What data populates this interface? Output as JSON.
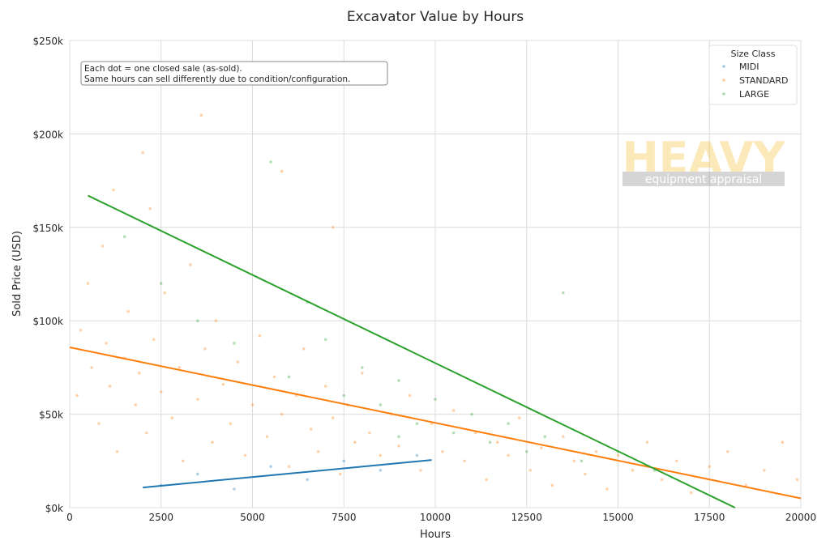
{
  "chart_data": {
    "type": "scatter",
    "title": "Excavator Value by Hours",
    "xlabel": "Hours",
    "ylabel": "Sold Price (USD)",
    "xlim": [
      0,
      20000
    ],
    "ylim": [
      0,
      250000
    ],
    "xticks": [
      0,
      2500,
      5000,
      7500,
      10000,
      12500,
      15000,
      17500,
      20000
    ],
    "xtick_labels": [
      "0",
      "2500",
      "5000",
      "7500",
      "10000",
      "12500",
      "15000",
      "17500",
      "20000"
    ],
    "yticks": [
      0,
      50000,
      100000,
      150000,
      200000,
      250000
    ],
    "ytick_labels": [
      "$0k",
      "$50k",
      "$100k",
      "$150k",
      "$200k",
      "$250k"
    ],
    "grid": true,
    "legend": {
      "title": "Size Class",
      "placement": "top-right"
    },
    "annotation": [
      "Each dot = one closed sale (as-sold).",
      "Same hours can sell differently due to condition/configuration."
    ],
    "watermark": {
      "line1": "HEAVY",
      "line2": "equipment appraisal"
    },
    "series": [
      {
        "name": "MIDI",
        "color": "#1f77b4",
        "points": [
          [
            2500,
            12000
          ],
          [
            3500,
            18000
          ],
          [
            4500,
            10000
          ],
          [
            5500,
            22000
          ],
          [
            6500,
            15000
          ],
          [
            7500,
            25000
          ],
          [
            8500,
            20000
          ],
          [
            9500,
            28000
          ]
        ],
        "trend": [
          [
            2000,
            10800
          ],
          [
            9900,
            25500
          ]
        ]
      },
      {
        "name": "STANDARD",
        "color": "#ff7f0e",
        "points": [
          [
            200,
            60000
          ],
          [
            300,
            95000
          ],
          [
            500,
            120000
          ],
          [
            600,
            75000
          ],
          [
            800,
            45000
          ],
          [
            900,
            140000
          ],
          [
            1000,
            88000
          ],
          [
            1100,
            65000
          ],
          [
            1200,
            170000
          ],
          [
            1300,
            30000
          ],
          [
            1500,
            80000
          ],
          [
            1600,
            105000
          ],
          [
            1800,
            55000
          ],
          [
            1900,
            72000
          ],
          [
            2000,
            190000
          ],
          [
            2100,
            40000
          ],
          [
            2300,
            90000
          ],
          [
            2500,
            62000
          ],
          [
            2600,
            115000
          ],
          [
            2800,
            48000
          ],
          [
            3000,
            75000
          ],
          [
            3100,
            25000
          ],
          [
            3300,
            130000
          ],
          [
            3500,
            58000
          ],
          [
            3700,
            85000
          ],
          [
            3900,
            35000
          ],
          [
            4000,
            100000
          ],
          [
            4200,
            66000
          ],
          [
            4400,
            45000
          ],
          [
            4600,
            78000
          ],
          [
            4800,
            28000
          ],
          [
            5000,
            55000
          ],
          [
            5200,
            92000
          ],
          [
            5400,
            38000
          ],
          [
            5600,
            70000
          ],
          [
            5800,
            50000
          ],
          [
            6000,
            22000
          ],
          [
            6200,
            60000
          ],
          [
            6400,
            85000
          ],
          [
            6600,
            42000
          ],
          [
            6800,
            30000
          ],
          [
            7000,
            65000
          ],
          [
            7200,
            48000
          ],
          [
            7400,
            18000
          ],
          [
            7600,
            55000
          ],
          [
            7800,
            35000
          ],
          [
            8000,
            72000
          ],
          [
            8200,
            40000
          ],
          [
            8500,
            28000
          ],
          [
            8800,
            50000
          ],
          [
            9000,
            33000
          ],
          [
            9300,
            60000
          ],
          [
            9600,
            20000
          ],
          [
            9900,
            45000
          ],
          [
            10200,
            30000
          ],
          [
            10500,
            52000
          ],
          [
            10800,
            25000
          ],
          [
            11100,
            40000
          ],
          [
            11400,
            15000
          ],
          [
            11700,
            35000
          ],
          [
            12000,
            28000
          ],
          [
            12300,
            48000
          ],
          [
            12600,
            20000
          ],
          [
            12900,
            32000
          ],
          [
            13200,
            12000
          ],
          [
            13500,
            38000
          ],
          [
            13800,
            25000
          ],
          [
            14100,
            18000
          ],
          [
            14400,
            30000
          ],
          [
            14700,
            10000
          ],
          [
            15000,
            28000
          ],
          [
            15400,
            20000
          ],
          [
            15800,
            35000
          ],
          [
            16200,
            15000
          ],
          [
            16600,
            25000
          ],
          [
            17000,
            8000
          ],
          [
            17500,
            22000
          ],
          [
            18000,
            30000
          ],
          [
            18500,
            12000
          ],
          [
            19000,
            20000
          ],
          [
            19500,
            35000
          ],
          [
            19900,
            15000
          ],
          [
            3600,
            210000
          ],
          [
            5800,
            180000
          ],
          [
            2200,
            160000
          ],
          [
            7200,
            150000
          ]
        ],
        "trend": [
          [
            0,
            85800
          ],
          [
            20000,
            5000
          ]
        ]
      },
      {
        "name": "LARGE",
        "color": "#2ca02c",
        "points": [
          [
            1500,
            145000
          ],
          [
            2500,
            120000
          ],
          [
            3500,
            100000
          ],
          [
            4500,
            88000
          ],
          [
            5500,
            185000
          ],
          [
            6000,
            70000
          ],
          [
            7000,
            90000
          ],
          [
            7500,
            60000
          ],
          [
            8000,
            75000
          ],
          [
            8500,
            55000
          ],
          [
            9000,
            68000
          ],
          [
            9500,
            45000
          ],
          [
            10000,
            58000
          ],
          [
            10500,
            40000
          ],
          [
            11000,
            50000
          ],
          [
            11500,
            35000
          ],
          [
            12000,
            45000
          ],
          [
            12500,
            30000
          ],
          [
            13000,
            38000
          ],
          [
            14000,
            25000
          ],
          [
            15000,
            30000
          ],
          [
            16000,
            20000
          ],
          [
            13500,
            115000
          ],
          [
            6500,
            110000
          ],
          [
            9000,
            38000
          ]
        ],
        "trend": [
          [
            500,
            167000
          ],
          [
            18200,
            0
          ]
        ]
      }
    ]
  }
}
